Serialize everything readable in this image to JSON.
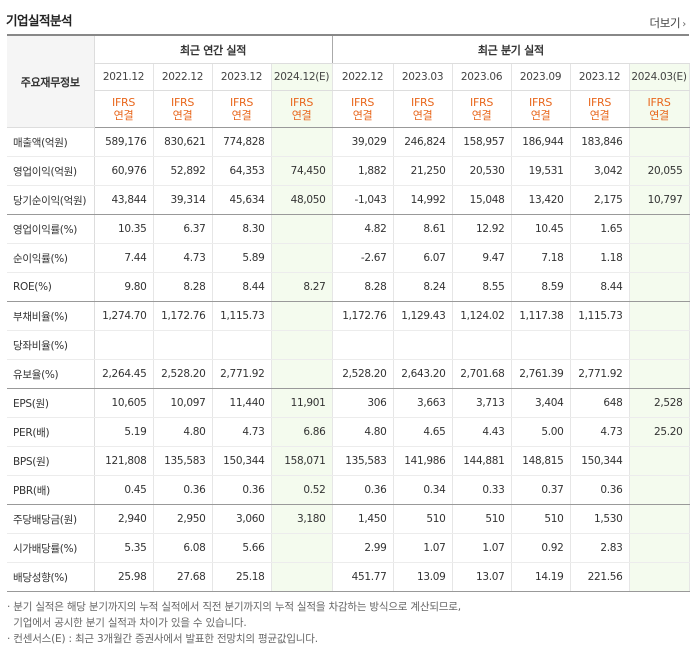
{
  "title": "기업실적분석",
  "more": "더보기",
  "headers": {
    "corner": "주요재무정보",
    "annual": "최근 연간 실적",
    "quarter": "최근 분기 실적",
    "periods": [
      "2021.12",
      "2022.12",
      "2023.12",
      "2024.12(E)",
      "2022.12",
      "2023.03",
      "2023.06",
      "2023.09",
      "2023.12",
      "2024.03(E)"
    ],
    "ifrs_top": "IFRS",
    "ifrs_bottom": "연결"
  },
  "rows": [
    {
      "label": "매출액(억원)",
      "values": [
        "589,176",
        "830,621",
        "774,828",
        "",
        "39,029",
        "246,824",
        "158,957",
        "186,944",
        "183,846",
        ""
      ]
    },
    {
      "label": "영업이익(억원)",
      "values": [
        "60,976",
        "52,892",
        "64,353",
        "74,450",
        "1,882",
        "21,250",
        "20,530",
        "19,531",
        "3,042",
        "20,055"
      ]
    },
    {
      "label": "당기순이익(억원)",
      "values": [
        "43,844",
        "39,314",
        "45,634",
        "48,050",
        "-1,043",
        "14,992",
        "15,048",
        "13,420",
        "2,175",
        "10,797"
      ]
    },
    {
      "label": "영업이익률(%)",
      "values": [
        "10.35",
        "6.37",
        "8.30",
        "",
        "4.82",
        "8.61",
        "12.92",
        "10.45",
        "1.65",
        ""
      ]
    },
    {
      "label": "순이익률(%)",
      "values": [
        "7.44",
        "4.73",
        "5.89",
        "",
        "-2.67",
        "6.07",
        "9.47",
        "7.18",
        "1.18",
        ""
      ]
    },
    {
      "label": "ROE(%)",
      "values": [
        "9.80",
        "8.28",
        "8.44",
        "8.27",
        "8.28",
        "8.24",
        "8.55",
        "8.59",
        "8.44",
        ""
      ]
    },
    {
      "label": "부채비율(%)",
      "values": [
        "1,274.70",
        "1,172.76",
        "1,115.73",
        "",
        "1,172.76",
        "1,129.43",
        "1,124.02",
        "1,117.38",
        "1,115.73",
        ""
      ]
    },
    {
      "label": "당좌비율(%)",
      "values": [
        "",
        "",
        "",
        "",
        "",
        "",
        "",
        "",
        "",
        ""
      ]
    },
    {
      "label": "유보율(%)",
      "values": [
        "2,264.45",
        "2,528.20",
        "2,771.92",
        "",
        "2,528.20",
        "2,643.20",
        "2,701.68",
        "2,761.39",
        "2,771.92",
        ""
      ]
    },
    {
      "label": "EPS(원)",
      "values": [
        "10,605",
        "10,097",
        "11,440",
        "11,901",
        "306",
        "3,663",
        "3,713",
        "3,404",
        "648",
        "2,528"
      ]
    },
    {
      "label": "PER(배)",
      "values": [
        "5.19",
        "4.80",
        "4.73",
        "6.86",
        "4.80",
        "4.65",
        "4.43",
        "5.00",
        "4.73",
        "25.20"
      ]
    },
    {
      "label": "BPS(원)",
      "values": [
        "121,808",
        "135,583",
        "150,344",
        "158,071",
        "135,583",
        "141,986",
        "144,881",
        "148,815",
        "150,344",
        ""
      ]
    },
    {
      "label": "PBR(배)",
      "values": [
        "0.45",
        "0.36",
        "0.36",
        "0.52",
        "0.36",
        "0.34",
        "0.33",
        "0.37",
        "0.36",
        ""
      ]
    },
    {
      "label": "주당배당금(원)",
      "values": [
        "2,940",
        "2,950",
        "3,060",
        "3,180",
        "1,450",
        "510",
        "510",
        "510",
        "1,530",
        ""
      ]
    },
    {
      "label": "시가배당률(%)",
      "values": [
        "5.35",
        "6.08",
        "5.66",
        "",
        "2.99",
        "1.07",
        "1.07",
        "0.92",
        "2.83",
        ""
      ]
    },
    {
      "label": "배당성향(%)",
      "values": [
        "25.98",
        "27.68",
        "25.18",
        "",
        "451.77",
        "13.09",
        "13.07",
        "14.19",
        "221.56",
        ""
      ]
    }
  ],
  "notes": [
    "· 분기 실적은 해당 분기까지의 누적 실적에서 직전 분기까지의 누적 실적을 차감하는 방식으로 계산되므로,",
    "  기업에서 공시한 분기 실적과 차이가 있을 수 있습니다.",
    "· 컨센서스(E) : 최근 3개월간 증권사에서 발표한 전망치의 평균값입니다."
  ],
  "colors": {
    "ifrs": "#e8671d",
    "estimate_bg": "#f4fbee",
    "negative": "#e52222"
  }
}
